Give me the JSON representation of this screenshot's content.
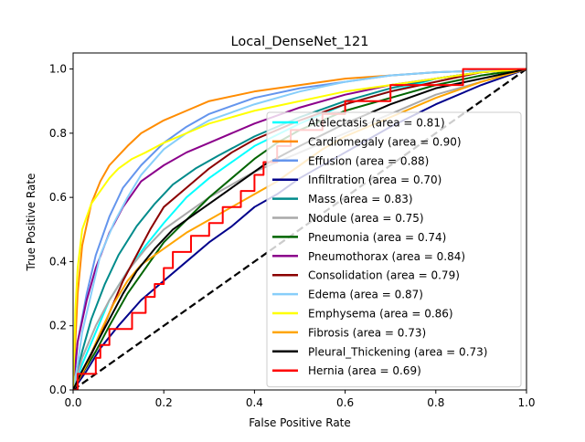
{
  "chart_data": {
    "type": "line",
    "title": "Local_DenseNet_121",
    "xlabel": "False Positive Rate",
    "ylabel": "True Positive Rate",
    "xlim": [
      0,
      1
    ],
    "ylim": [
      0,
      1.05
    ],
    "xticks": [
      "0.0",
      "0.2",
      "0.4",
      "0.6",
      "0.8",
      "1.0"
    ],
    "yticks": [
      "0.0",
      "0.2",
      "0.4",
      "0.6",
      "0.8",
      "1.0"
    ],
    "grid": false,
    "legend_position": "lower right",
    "diagonal": {
      "points": [
        [
          0,
          0
        ],
        [
          1,
          1
        ]
      ],
      "color": "#000000",
      "style": "dashed"
    },
    "series": [
      {
        "name": "Atelectasis (area = 0.81)",
        "color": "#00ffff",
        "points": [
          [
            0,
            0
          ],
          [
            0.02,
            0.08
          ],
          [
            0.05,
            0.18
          ],
          [
            0.08,
            0.28
          ],
          [
            0.12,
            0.37
          ],
          [
            0.16,
            0.45
          ],
          [
            0.2,
            0.52
          ],
          [
            0.25,
            0.6
          ],
          [
            0.3,
            0.66
          ],
          [
            0.35,
            0.71
          ],
          [
            0.4,
            0.76
          ],
          [
            0.5,
            0.83
          ],
          [
            0.6,
            0.89
          ],
          [
            0.7,
            0.93
          ],
          [
            0.8,
            0.97
          ],
          [
            0.9,
            0.99
          ],
          [
            1,
            1
          ]
        ]
      },
      {
        "name": "Cardiomegaly (area = 0.90)",
        "color": "#ff8c00",
        "points": [
          [
            0,
            0
          ],
          [
            0.01,
            0.3
          ],
          [
            0.02,
            0.45
          ],
          [
            0.04,
            0.58
          ],
          [
            0.06,
            0.65
          ],
          [
            0.08,
            0.7
          ],
          [
            0.1,
            0.73
          ],
          [
            0.12,
            0.76
          ],
          [
            0.15,
            0.8
          ],
          [
            0.2,
            0.84
          ],
          [
            0.25,
            0.87
          ],
          [
            0.3,
            0.9
          ],
          [
            0.4,
            0.93
          ],
          [
            0.5,
            0.95
          ],
          [
            0.6,
            0.97
          ],
          [
            0.7,
            0.98
          ],
          [
            0.8,
            0.99
          ],
          [
            1,
            1
          ]
        ]
      },
      {
        "name": "Effusion (area = 0.88)",
        "color": "#6495ed",
        "points": [
          [
            0,
            0
          ],
          [
            0.01,
            0.15
          ],
          [
            0.03,
            0.3
          ],
          [
            0.05,
            0.42
          ],
          [
            0.08,
            0.54
          ],
          [
            0.11,
            0.63
          ],
          [
            0.15,
            0.7
          ],
          [
            0.2,
            0.77
          ],
          [
            0.25,
            0.82
          ],
          [
            0.3,
            0.86
          ],
          [
            0.4,
            0.91
          ],
          [
            0.5,
            0.94
          ],
          [
            0.6,
            0.96
          ],
          [
            0.7,
            0.98
          ],
          [
            0.8,
            0.99
          ],
          [
            1,
            1
          ]
        ]
      },
      {
        "name": "Infiltration (area = 0.70)",
        "color": "#00008b",
        "points": [
          [
            0,
            0
          ],
          [
            0.03,
            0.06
          ],
          [
            0.06,
            0.13
          ],
          [
            0.1,
            0.2
          ],
          [
            0.15,
            0.28
          ],
          [
            0.2,
            0.34
          ],
          [
            0.25,
            0.4
          ],
          [
            0.3,
            0.46
          ],
          [
            0.35,
            0.51
          ],
          [
            0.4,
            0.57
          ],
          [
            0.45,
            0.61
          ],
          [
            0.5,
            0.66
          ],
          [
            0.6,
            0.74
          ],
          [
            0.7,
            0.82
          ],
          [
            0.8,
            0.89
          ],
          [
            0.9,
            0.95
          ],
          [
            1,
            1
          ]
        ]
      },
      {
        "name": "Mass (area = 0.83)",
        "color": "#008b8b",
        "points": [
          [
            0,
            0
          ],
          [
            0.02,
            0.12
          ],
          [
            0.04,
            0.22
          ],
          [
            0.07,
            0.33
          ],
          [
            0.1,
            0.42
          ],
          [
            0.14,
            0.51
          ],
          [
            0.18,
            0.58
          ],
          [
            0.22,
            0.64
          ],
          [
            0.27,
            0.69
          ],
          [
            0.32,
            0.73
          ],
          [
            0.4,
            0.79
          ],
          [
            0.5,
            0.85
          ],
          [
            0.6,
            0.9
          ],
          [
            0.7,
            0.94
          ],
          [
            0.8,
            0.97
          ],
          [
            0.9,
            0.99
          ],
          [
            1,
            1
          ]
        ]
      },
      {
        "name": "Nodule (area = 0.75)",
        "color": "#a9a9a9",
        "points": [
          [
            0,
            0
          ],
          [
            0.02,
            0.1
          ],
          [
            0.05,
            0.2
          ],
          [
            0.08,
            0.28
          ],
          [
            0.12,
            0.37
          ],
          [
            0.16,
            0.44
          ],
          [
            0.2,
            0.5
          ],
          [
            0.25,
            0.55
          ],
          [
            0.3,
            0.6
          ],
          [
            0.35,
            0.64
          ],
          [
            0.4,
            0.68
          ],
          [
            0.5,
            0.74
          ],
          [
            0.6,
            0.8
          ],
          [
            0.7,
            0.86
          ],
          [
            0.8,
            0.92
          ],
          [
            0.9,
            0.96
          ],
          [
            1,
            1
          ]
        ]
      },
      {
        "name": "Pneumonia (area = 0.74)",
        "color": "#006400",
        "points": [
          [
            0,
            0
          ],
          [
            0.02,
            0.05
          ],
          [
            0.05,
            0.12
          ],
          [
            0.08,
            0.2
          ],
          [
            0.12,
            0.3
          ],
          [
            0.16,
            0.38
          ],
          [
            0.2,
            0.46
          ],
          [
            0.25,
            0.53
          ],
          [
            0.3,
            0.6
          ],
          [
            0.35,
            0.66
          ],
          [
            0.4,
            0.72
          ],
          [
            0.45,
            0.77
          ],
          [
            0.5,
            0.81
          ],
          [
            0.6,
            0.87
          ],
          [
            0.7,
            0.91
          ],
          [
            0.8,
            0.95
          ],
          [
            0.9,
            0.98
          ],
          [
            1,
            1
          ]
        ]
      },
      {
        "name": "Pneumothorax (area = 0.84)",
        "color": "#8b008b",
        "points": [
          [
            0,
            0
          ],
          [
            0.01,
            0.15
          ],
          [
            0.03,
            0.28
          ],
          [
            0.05,
            0.38
          ],
          [
            0.08,
            0.49
          ],
          [
            0.11,
            0.57
          ],
          [
            0.15,
            0.65
          ],
          [
            0.2,
            0.7
          ],
          [
            0.25,
            0.74
          ],
          [
            0.3,
            0.77
          ],
          [
            0.4,
            0.83
          ],
          [
            0.5,
            0.88
          ],
          [
            0.6,
            0.92
          ],
          [
            0.7,
            0.95
          ],
          [
            0.8,
            0.97
          ],
          [
            0.9,
            0.99
          ],
          [
            1,
            1
          ]
        ]
      },
      {
        "name": "Consolidation (area = 0.79)",
        "color": "#8b0000",
        "points": [
          [
            0,
            0
          ],
          [
            0.02,
            0.05
          ],
          [
            0.05,
            0.14
          ],
          [
            0.08,
            0.24
          ],
          [
            0.11,
            0.34
          ],
          [
            0.14,
            0.42
          ],
          [
            0.17,
            0.5
          ],
          [
            0.2,
            0.57
          ],
          [
            0.25,
            0.63
          ],
          [
            0.3,
            0.69
          ],
          [
            0.35,
            0.74
          ],
          [
            0.4,
            0.78
          ],
          [
            0.5,
            0.84
          ],
          [
            0.6,
            0.89
          ],
          [
            0.7,
            0.93
          ],
          [
            0.8,
            0.96
          ],
          [
            0.9,
            0.99
          ],
          [
            1,
            1
          ]
        ]
      },
      {
        "name": "Edema (area = 0.87)",
        "color": "#87cefa",
        "points": [
          [
            0,
            0
          ],
          [
            0.01,
            0.08
          ],
          [
            0.02,
            0.18
          ],
          [
            0.04,
            0.3
          ],
          [
            0.06,
            0.42
          ],
          [
            0.09,
            0.52
          ],
          [
            0.12,
            0.6
          ],
          [
            0.15,
            0.67
          ],
          [
            0.2,
            0.75
          ],
          [
            0.25,
            0.8
          ],
          [
            0.3,
            0.84
          ],
          [
            0.4,
            0.89
          ],
          [
            0.5,
            0.93
          ],
          [
            0.6,
            0.96
          ],
          [
            0.7,
            0.98
          ],
          [
            0.8,
            0.99
          ],
          [
            1,
            1
          ]
        ]
      },
      {
        "name": "Emphysema (area = 0.86)",
        "color": "#ffff00",
        "points": [
          [
            0,
            0
          ],
          [
            0.005,
            0.25
          ],
          [
            0.01,
            0.38
          ],
          [
            0.02,
            0.5
          ],
          [
            0.04,
            0.58
          ],
          [
            0.06,
            0.62
          ],
          [
            0.08,
            0.66
          ],
          [
            0.1,
            0.69
          ],
          [
            0.13,
            0.72
          ],
          [
            0.16,
            0.74
          ],
          [
            0.2,
            0.77
          ],
          [
            0.25,
            0.8
          ],
          [
            0.3,
            0.83
          ],
          [
            0.35,
            0.85
          ],
          [
            0.4,
            0.87
          ],
          [
            0.5,
            0.9
          ],
          [
            0.6,
            0.93
          ],
          [
            0.7,
            0.95
          ],
          [
            0.8,
            0.97
          ],
          [
            0.9,
            0.99
          ],
          [
            1,
            1
          ]
        ]
      },
      {
        "name": "Fibrosis (area = 0.73)",
        "color": "#ffa500",
        "points": [
          [
            0,
            0
          ],
          [
            0.03,
            0.08
          ],
          [
            0.06,
            0.18
          ],
          [
            0.09,
            0.27
          ],
          [
            0.12,
            0.34
          ],
          [
            0.15,
            0.39
          ],
          [
            0.2,
            0.44
          ],
          [
            0.25,
            0.49
          ],
          [
            0.3,
            0.53
          ],
          [
            0.35,
            0.57
          ],
          [
            0.4,
            0.61
          ],
          [
            0.45,
            0.65
          ],
          [
            0.5,
            0.7
          ],
          [
            0.55,
            0.75
          ],
          [
            0.6,
            0.79
          ],
          [
            0.7,
            0.85
          ],
          [
            0.8,
            0.91
          ],
          [
            0.9,
            0.96
          ],
          [
            1,
            1
          ]
        ]
      },
      {
        "name": "Pleural_Thickening (area = 0.73)",
        "color": "#000000",
        "points": [
          [
            0,
            0
          ],
          [
            0.02,
            0.06
          ],
          [
            0.05,
            0.14
          ],
          [
            0.08,
            0.22
          ],
          [
            0.11,
            0.3
          ],
          [
            0.14,
            0.37
          ],
          [
            0.18,
            0.44
          ],
          [
            0.22,
            0.5
          ],
          [
            0.27,
            0.55
          ],
          [
            0.32,
            0.6
          ],
          [
            0.37,
            0.65
          ],
          [
            0.42,
            0.7
          ],
          [
            0.5,
            0.76
          ],
          [
            0.6,
            0.83
          ],
          [
            0.7,
            0.89
          ],
          [
            0.8,
            0.94
          ],
          [
            0.9,
            0.97
          ],
          [
            1,
            1
          ]
        ]
      },
      {
        "name": "Hernia (area = 0.69)",
        "color": "#ff0000",
        "step": true,
        "points": [
          [
            0,
            0
          ],
          [
            0.01,
            0.05
          ],
          [
            0.05,
            0.1
          ],
          [
            0.06,
            0.14
          ],
          [
            0.08,
            0.19
          ],
          [
            0.13,
            0.24
          ],
          [
            0.16,
            0.29
          ],
          [
            0.18,
            0.33
          ],
          [
            0.2,
            0.38
          ],
          [
            0.22,
            0.43
          ],
          [
            0.26,
            0.48
          ],
          [
            0.3,
            0.52
          ],
          [
            0.33,
            0.57
          ],
          [
            0.37,
            0.62
          ],
          [
            0.4,
            0.67
          ],
          [
            0.42,
            0.71
          ],
          [
            0.45,
            0.76
          ],
          [
            0.48,
            0.81
          ],
          [
            0.55,
            0.86
          ],
          [
            0.6,
            0.9
          ],
          [
            0.66,
            0.9
          ],
          [
            0.7,
            0.95
          ],
          [
            0.86,
            0.95
          ],
          [
            0.86,
            1
          ],
          [
            1,
            1
          ]
        ]
      }
    ]
  }
}
